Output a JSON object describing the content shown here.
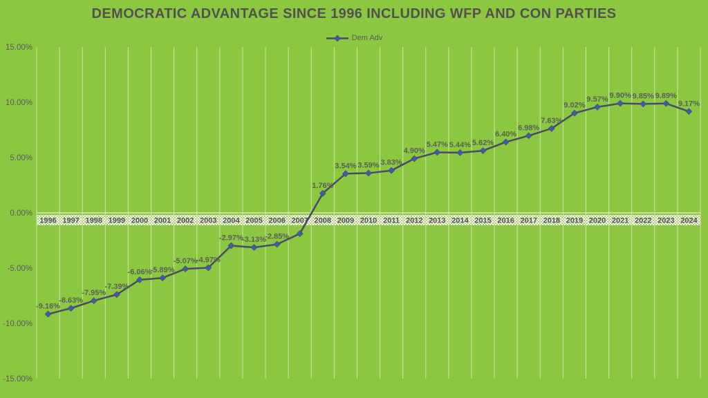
{
  "colors": {
    "background": "#8dc742",
    "series_line": "#4b4964",
    "marker": "#3d5da9",
    "gridline": "#ffffff",
    "title_text": "#515151",
    "axis_text": "#595959",
    "data_label_text": "#596052"
  },
  "chart_data": {
    "type": "line",
    "title": "DEMOCRATIC ADVANTAGE SINCE 1996 INCLUDING WFP AND CON PARTIES",
    "legend": {
      "position": "top",
      "label": "Dem Adv"
    },
    "xlabel": "",
    "ylabel": "",
    "ylim": [
      -15,
      15
    ],
    "gridlines": "vertical-only",
    "categories": [
      "1996",
      "1997",
      "1998",
      "1999",
      "2000",
      "2001",
      "2002",
      "2003",
      "2004",
      "2005",
      "2006",
      "2007",
      "2008",
      "2009",
      "2010",
      "2011",
      "2012",
      "2013",
      "2014",
      "2015",
      "2016",
      "2017",
      "2018",
      "2019",
      "2020",
      "2021",
      "2022",
      "2023",
      "2024"
    ],
    "series": [
      {
        "name": "Dem Adv",
        "values": [
          -9.16,
          -8.63,
          -7.95,
          -7.39,
          -6.06,
          -5.89,
          -5.07,
          -4.97,
          -2.97,
          -3.13,
          -2.85,
          -1.88,
          1.76,
          3.54,
          3.59,
          3.83,
          4.9,
          5.47,
          5.44,
          5.62,
          6.4,
          6.98,
          7.63,
          9.02,
          9.57,
          9.9,
          9.85,
          9.89,
          9.17
        ]
      }
    ],
    "data_labels": [
      "-9.16%",
      "-8.63%",
      "-7.95%",
      "-7.39%",
      "-6.06%",
      "-5.89%",
      "-5.07%",
      "-4.97%",
      "-2.97%",
      "-3.13%",
      "-2.85%",
      "",
      "1.76%",
      "3.54%",
      "3.59%",
      "3.83%",
      "4.90%",
      "5.47%",
      "5.44%",
      "5.62%",
      "6.40%",
      "6.98%",
      "7.63%",
      "9.02%",
      "9.57%",
      "9.90%",
      "9.85%",
      "9.89%",
      "9.17%"
    ],
    "y_axis": {
      "ticks": [
        {
          "label": "15.00%",
          "value": 15
        },
        {
          "label": "10.00%",
          "value": 10
        },
        {
          "label": "5.00%",
          "value": 5
        },
        {
          "label": "0.00%",
          "value": 0
        },
        {
          "label": "-5.00%",
          "value": -5
        },
        {
          "label": "-10.00%",
          "value": -10
        },
        {
          "label": "-15.00%",
          "value": -15
        }
      ]
    }
  }
}
